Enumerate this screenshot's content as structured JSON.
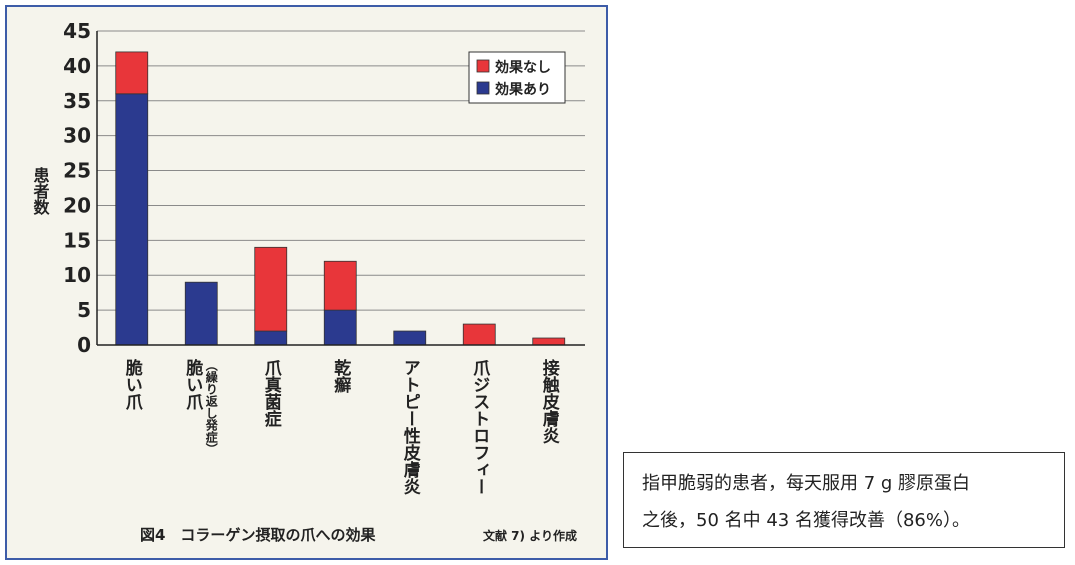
{
  "chart_data": {
    "type": "bar",
    "stacked": true,
    "title": "図4　コラーゲン摂取の爪への効果",
    "source": "文献 7) より作成",
    "xlabel": "",
    "ylabel": "患者数",
    "ylim": [
      0,
      45
    ],
    "yticks": [
      0,
      5,
      10,
      15,
      20,
      25,
      30,
      35,
      40,
      45
    ],
    "grid": true,
    "legend_position": "top-right",
    "categories": [
      "脆い爪",
      "脆い爪（繰り返し発症）",
      "爪真菌症",
      "乾癬",
      "アトピー性皮膚炎",
      "爪ジストロフィー",
      "接触皮膚炎"
    ],
    "series": [
      {
        "name": "効果あり",
        "color": "#2b3a8f",
        "values": [
          36,
          9,
          2,
          5,
          2,
          0,
          0
        ]
      },
      {
        "name": "効果なし",
        "color": "#e8363a",
        "values": [
          6,
          0,
          12,
          7,
          0,
          3,
          1
        ]
      }
    ],
    "legend": [
      "効果なし",
      "効果あり"
    ]
  },
  "note": {
    "line1": "指甲脆弱的患者，每天服用 7 g 膠原蛋白",
    "line2": "之後，50 名中 43 名獲得改善（86%）。"
  }
}
